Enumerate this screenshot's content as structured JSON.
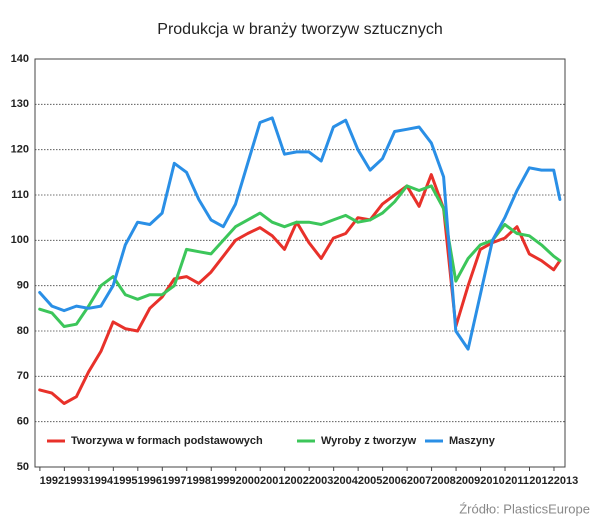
{
  "chart_data": {
    "type": "line",
    "title": "Produkcja w branży tworzyw sztucznych",
    "source": "Źródło: PlasticsEurope",
    "x": [
      1991.5,
      1992,
      1992.5,
      1993,
      1993.5,
      1994,
      1994.5,
      1995,
      1995.5,
      1996,
      1996.5,
      1997,
      1997.5,
      1998,
      1998.5,
      1999,
      1999.5,
      2000,
      2000.5,
      2001,
      2001.5,
      2002,
      2002.5,
      2003,
      2003.5,
      2004,
      2004.5,
      2005,
      2005.5,
      2006,
      2006.5,
      2007,
      2007.5,
      2008,
      2008.5,
      2009,
      2009.5,
      2010,
      2010.5,
      2011,
      2011.5,
      2012,
      2012.5,
      2012.75
    ],
    "series": [
      {
        "name": "Tworzywa w formach podstawowych",
        "color": "#e8312a",
        "values": [
          67,
          66.3,
          64,
          65.5,
          71,
          75.5,
          82,
          80.5,
          80,
          85,
          87.5,
          91.5,
          92,
          90.5,
          93,
          96.5,
          100,
          101.5,
          102.8,
          101,
          98,
          104,
          99.5,
          96,
          100.5,
          101.5,
          105,
          104.5,
          108,
          110,
          112,
          107.5,
          114.5,
          107,
          81,
          90,
          98,
          99.5,
          100.5,
          103,
          97,
          95.5,
          93.5,
          95.5
        ]
      },
      {
        "name": "Wyroby z tworzyw",
        "color": "#3cc65a",
        "values": [
          84.8,
          84,
          81,
          81.5,
          85.5,
          90,
          92,
          88,
          87,
          88,
          88,
          90,
          98,
          97.5,
          97,
          100,
          103,
          104.5,
          106,
          104,
          103,
          104,
          104,
          103.5,
          104.5,
          105.5,
          104,
          104.5,
          106,
          108.5,
          112,
          111,
          112,
          107,
          91,
          96,
          99,
          100,
          103.5,
          101.5,
          101,
          99,
          96.5,
          95.5
        ]
      },
      {
        "name": "Maszyny",
        "color": "#2a8fe6",
        "values": [
          88.5,
          85.5,
          84.5,
          85.5,
          85,
          85.5,
          90,
          99,
          104,
          103.5,
          106,
          117,
          115,
          109,
          104.5,
          103,
          108,
          117,
          126,
          127,
          119,
          119.5,
          119.5,
          117.5,
          125,
          126.5,
          120,
          115.5,
          118,
          124,
          124.5,
          125,
          121.5,
          114,
          80,
          76,
          88,
          100,
          105,
          111,
          116,
          115.5,
          115.5,
          109
        ]
      }
    ],
    "xlim": [
      1991.31,
      2012.96
    ],
    "xticks": [
      1992,
      1993,
      1994,
      1995,
      1996,
      1997,
      1998,
      1999,
      2000,
      2001,
      2002,
      2003,
      2004,
      2005,
      2006,
      2007,
      2008,
      2009,
      2010,
      2011,
      2012,
      2013
    ],
    "ylim": [
      50,
      140
    ],
    "yticks": [
      50,
      60,
      70,
      80,
      90,
      100,
      110,
      120,
      130,
      140
    ],
    "grid": true,
    "legend": "lower left"
  }
}
